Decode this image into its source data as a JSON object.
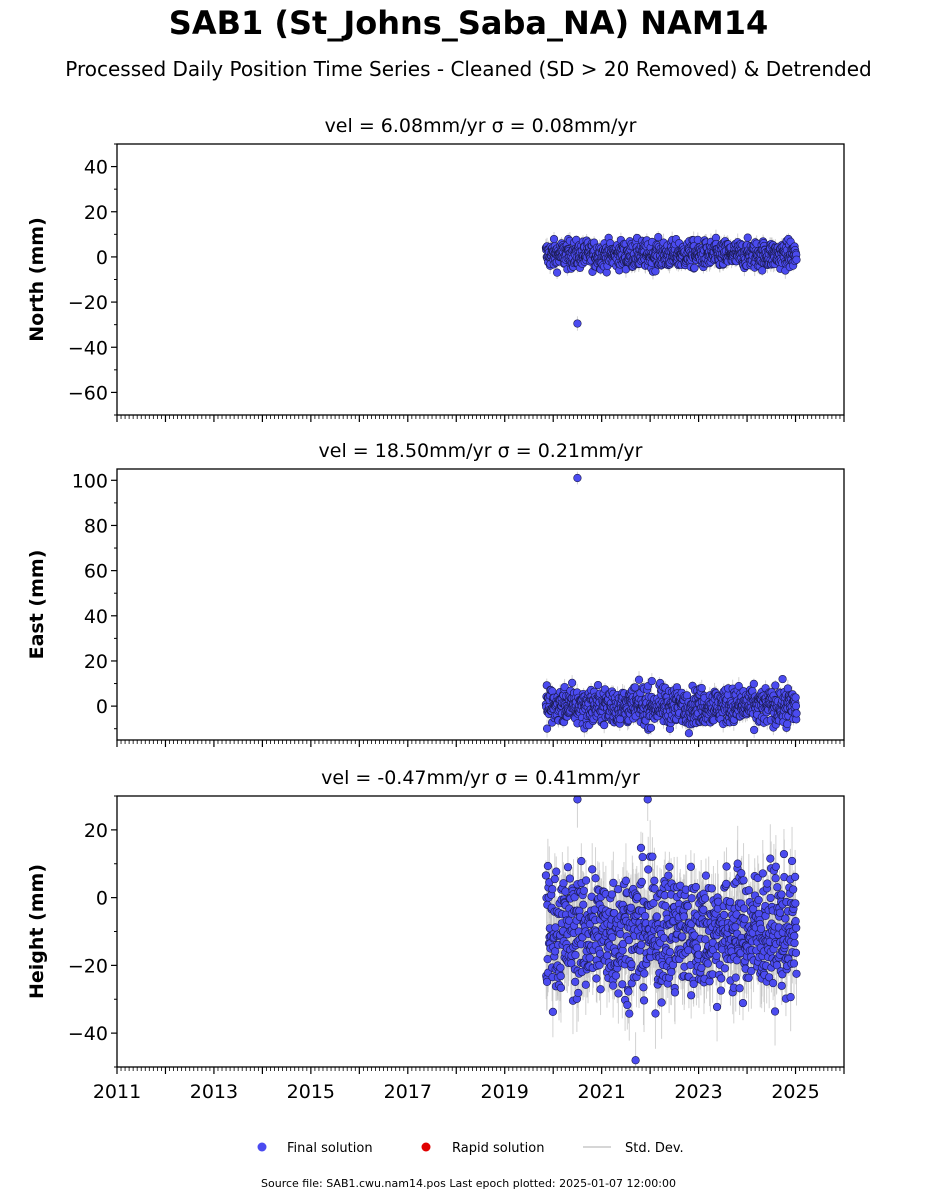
{
  "page": {
    "title": "SAB1 (St_Johns_Saba_NA) NAM14",
    "subtitle": "Processed Daily Position Time Series - Cleaned (SD > 20 Removed) & Detrended",
    "footer": "Source file: SAB1.cwu.nam14.pos  Last epoch plotted: 2025-01-07 12:00:00"
  },
  "legend": {
    "final": "Final solution",
    "rapid": "Rapid solution",
    "std": "Std. Dev."
  },
  "colors": {
    "final": "#4b4bf0",
    "rapid": "#e00000",
    "std": "#c0c0c0",
    "marker_edge": "#1a1a4a"
  },
  "chart_data": [
    {
      "type": "scatter",
      "title": "vel = 6.08mm/yr   σ = 0.08mm/yr",
      "ylabel": "North (mm)",
      "xlim": [
        2011.0,
        2026.0
      ],
      "ylim": [
        -70,
        50
      ],
      "yticks": [
        -60,
        -40,
        -20,
        0,
        20,
        40
      ],
      "x_range_of_data": [
        2019.85,
        2025.02
      ],
      "typical_y_range": [
        -8,
        11
      ],
      "series_center": 1.0,
      "series_spread": 3.0,
      "outliers": [
        {
          "x": 2020.5,
          "y": -29.5
        }
      ]
    },
    {
      "type": "scatter",
      "title": "vel = 18.50mm/yr   σ = 0.21mm/yr",
      "ylabel": "East (mm)",
      "xlim": [
        2011.0,
        2026.0
      ],
      "ylim": [
        -15,
        105
      ],
      "yticks": [
        0,
        20,
        40,
        60,
        80,
        100
      ],
      "x_range_of_data": [
        2019.85,
        2025.02
      ],
      "typical_y_range": [
        -12,
        12
      ],
      "series_center": 0.0,
      "series_spread": 4.0,
      "outliers": [
        {
          "x": 2020.5,
          "y": 101
        }
      ]
    },
    {
      "type": "scatter",
      "title": "vel = -0.47mm/yr   σ = 0.41mm/yr",
      "ylabel": "Height (mm)",
      "xlim": [
        2011.0,
        2026.0
      ],
      "ylim": [
        -50,
        30
      ],
      "yticks": [
        -40,
        -20,
        0,
        20
      ],
      "xticks": [
        2011,
        2013,
        2015,
        2017,
        2019,
        2021,
        2023,
        2025
      ],
      "x_range_of_data": [
        2019.85,
        2025.02
      ],
      "typical_y_range": [
        -48,
        29
      ],
      "series_center": -10.0,
      "series_spread": 9.0,
      "outliers": [
        {
          "x": 2021.7,
          "y": -48
        },
        {
          "x": 2020.5,
          "y": 29
        },
        {
          "x": 2021.95,
          "y": 29
        }
      ]
    }
  ]
}
